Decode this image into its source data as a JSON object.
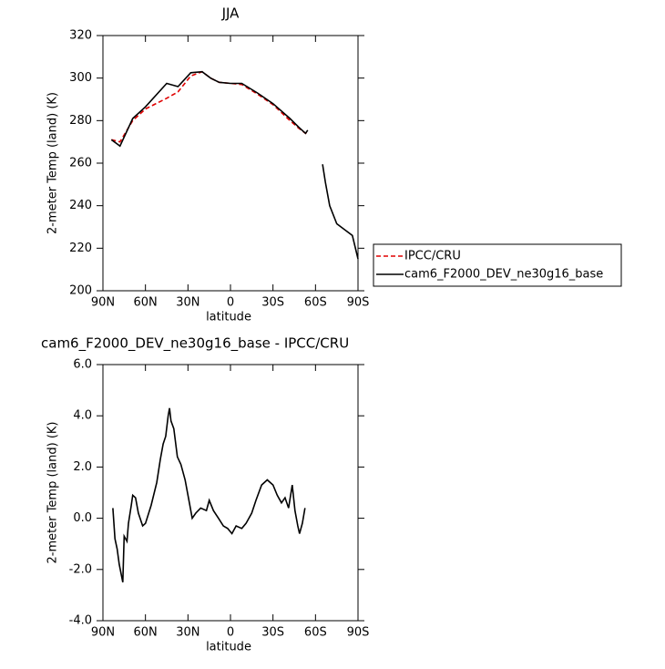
{
  "chart_data": [
    {
      "type": "line",
      "title": "JJA",
      "xlabel": "latitude",
      "ylabel": "2-meter Temp (land) (K)",
      "x": [
        84,
        78,
        69,
        60,
        45,
        37,
        28,
        20,
        14,
        8,
        0,
        -8,
        -19,
        -30,
        -42,
        -48,
        -53,
        -54.5,
        -60,
        -65,
        -67,
        -70,
        -75,
        -81,
        -86,
        -90
      ],
      "series": [
        {
          "name": "IPCC/CRU",
          "color": "#e00000",
          "dash": true,
          "values": [
            271,
            270,
            280,
            285.5,
            290.5,
            293.5,
            301,
            303,
            300,
            298,
            297.5,
            297,
            292.5,
            287.5,
            280,
            276.5,
            274,
            275,
            null,
            null,
            null,
            null,
            null,
            null,
            null,
            null
          ]
        },
        {
          "name": "cam6_F2000_DEV_ne30g16_base",
          "color": "#000000",
          "dash": false,
          "values": [
            271,
            268,
            281,
            286.5,
            297.5,
            296,
            302.5,
            303,
            300,
            298,
            297.5,
            297.5,
            293,
            288,
            281,
            277,
            274,
            275.5,
            null,
            259.5,
            251,
            240,
            231.5,
            228.5,
            226,
            215
          ]
        }
      ],
      "xlim": [
        90,
        -90
      ],
      "xticks": [
        {
          "value": 90,
          "label": "90N"
        },
        {
          "value": 60,
          "label": "60N"
        },
        {
          "value": 30,
          "label": "30N"
        },
        0,
        {
          "value": -30,
          "label": "30S"
        },
        {
          "value": -60,
          "label": "60S"
        },
        {
          "value": -90,
          "label": "90S"
        }
      ],
      "ylim": [
        200,
        320
      ],
      "yticks": [
        200,
        220,
        240,
        260,
        280,
        300,
        320
      ],
      "legend": "outside-right"
    },
    {
      "type": "line",
      "title": "cam6_F2000_DEV_ne30g16_base - IPCC/CRU",
      "xlabel": "latitude",
      "ylabel": "2-meter Temp (land) (K)",
      "x": [
        83,
        81.5,
        80,
        78.5,
        76,
        75,
        73,
        72,
        70,
        69,
        67,
        65,
        62,
        60,
        56,
        52,
        49.5,
        47.5,
        45.7,
        44,
        43,
        42,
        40,
        37.5,
        35,
        32,
        29,
        27,
        24.5,
        21,
        17,
        15,
        12,
        8.5,
        5,
        2,
        -1,
        -4,
        -8,
        -11,
        -15,
        -18,
        -22,
        -26,
        -30,
        -33,
        -36,
        -38.5,
        -41,
        -43.6,
        -45.5,
        -47.5,
        -48.7,
        -50.7,
        -52.6
      ],
      "values": [
        0.4,
        -0.8,
        -1.2,
        -1.8,
        -2.5,
        -0.7,
        -0.9,
        -0.2,
        0.5,
        0.9,
        0.8,
        0.2,
        -0.3,
        -0.2,
        0.5,
        1.4,
        2.3,
        2.9,
        3.2,
        4.0,
        4.3,
        3.8,
        3.5,
        2.4,
        2.1,
        1.5,
        0.6,
        0.0,
        0.2,
        0.4,
        0.3,
        0.7,
        0.3,
        0.0,
        -0.3,
        -0.4,
        -0.6,
        -0.3,
        -0.4,
        -0.2,
        0.2,
        0.7,
        1.3,
        1.5,
        1.3,
        0.9,
        0.6,
        0.8,
        0.4,
        1.3,
        0.3,
        -0.3,
        -0.6,
        -0.2,
        0.4
      ],
      "color": "#000000",
      "xlim": [
        90,
        -90
      ],
      "xticks": [
        {
          "value": 90,
          "label": "90N"
        },
        {
          "value": 60,
          "label": "60N"
        },
        {
          "value": 30,
          "label": "30N"
        },
        0,
        {
          "value": -30,
          "label": "30S"
        },
        {
          "value": -60,
          "label": "60S"
        },
        {
          "value": -90,
          "label": "90S"
        }
      ],
      "ylim": [
        -4,
        6
      ],
      "yticks": [
        {
          "value": -4,
          "label": "-4.0"
        },
        {
          "value": -2,
          "label": "-2.0"
        },
        {
          "value": 0,
          "label": "0.0"
        },
        {
          "value": 2,
          "label": "2.0"
        },
        {
          "value": 4,
          "label": "4.0"
        },
        {
          "value": 6,
          "label": "6.0"
        }
      ]
    }
  ]
}
